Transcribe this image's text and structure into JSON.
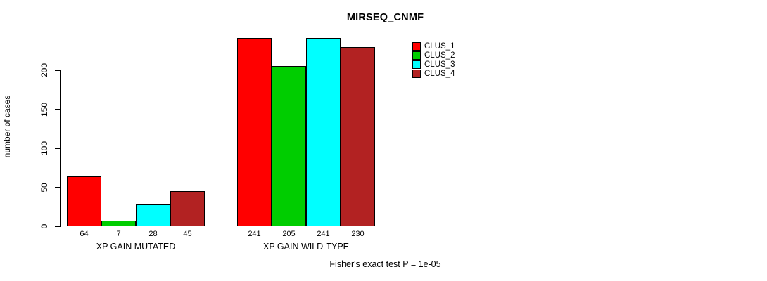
{
  "title": "MIRSEQ_CNMF",
  "ylabel": "number of cases",
  "footer": "Fisher's exact test P = 1e-05",
  "chart_data": {
    "type": "bar",
    "title": "MIRSEQ_CNMF",
    "xlabel": "",
    "ylabel": "number of cases",
    "categories": [
      "XP GAIN MUTATED",
      "XP GAIN WILD-TYPE"
    ],
    "series": [
      {
        "name": "CLUS_1",
        "color": "#FF0000",
        "values": [
          64,
          241
        ]
      },
      {
        "name": "CLUS_2",
        "color": "#00CD00",
        "values": [
          7,
          205
        ]
      },
      {
        "name": "CLUS_3",
        "color": "#00FFFF",
        "values": [
          28,
          241
        ]
      },
      {
        "name": "CLUS_4",
        "color": "#B22222",
        "values": [
          45,
          230
        ]
      }
    ],
    "bar_value_labels": [
      [
        64,
        7,
        28,
        45
      ],
      [
        241,
        205,
        241,
        230
      ]
    ],
    "yticks": [
      0,
      50,
      100,
      150,
      200
    ],
    "ylim": [
      0,
      200
    ],
    "grid": false,
    "legend_position": "top-right",
    "legend_entries": [
      "CLUS_1",
      "CLUS_2",
      "CLUS_3",
      "CLUS_4"
    ],
    "annotation": "Fisher's exact test P = 1e-05"
  }
}
